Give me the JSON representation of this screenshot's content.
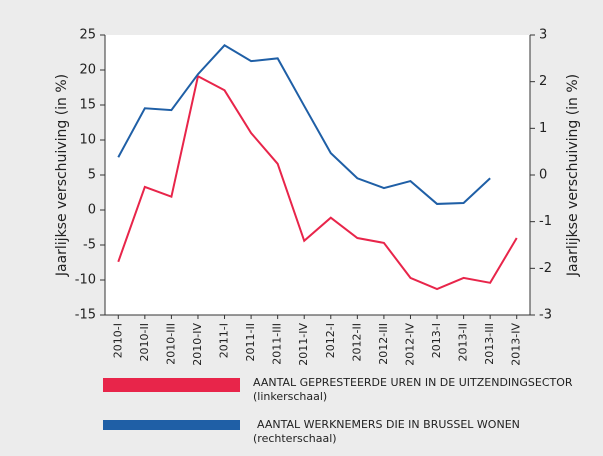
{
  "chart_data": {
    "type": "line",
    "ylabel": "Jaarlijkse  verschuiving (in %)",
    "y2label": "Jaarlijkse  verschuiving (in %)",
    "categories": [
      "2010-I",
      "2010-II",
      "2010-III",
      "2010-IV",
      "2011-I",
      "2011-II",
      "2011-III",
      "2011-IV",
      "2012-I",
      "2012-II",
      "2012-III",
      "2012-IV",
      "2013-I",
      "2013-II",
      "2013-III",
      "2013-IV"
    ],
    "ylim": [
      -15,
      25
    ],
    "yticks": [
      -15,
      -10,
      -5,
      0,
      5,
      10,
      15,
      20,
      25
    ],
    "y2lim": [
      -3,
      3
    ],
    "y2ticks": [
      -3,
      -2,
      -1,
      0,
      1,
      2,
      3
    ],
    "series": [
      {
        "name": "AANTAL GEPRESTEERDE UREN IN DE UITZENDINGSECTOR",
        "note": "(linkerschaal)",
        "color": "#e8254a",
        "values": [
          -7.4,
          3.3,
          1.9,
          19.1,
          17.1,
          11,
          6.6,
          -4.4,
          -1.1,
          -4.0,
          -4.7,
          -9.7,
          -11.3,
          -9.7,
          -10.4,
          -4.0
        ]
      },
      {
        "name": "AANTAL WERKNEMERS DIE IN BRUSSEL WONEN",
        "note": "(rechterschaal)",
        "color": "#1f5fa6",
        "axis": "y2",
        "values": [
          0.38,
          1.43,
          1.39,
          2.16,
          2.78,
          2.44,
          2.5,
          1.48,
          0.47,
          -0.07,
          -0.28,
          -0.13,
          -0.62,
          -0.6,
          -0.07,
          null
        ]
      }
    ]
  }
}
